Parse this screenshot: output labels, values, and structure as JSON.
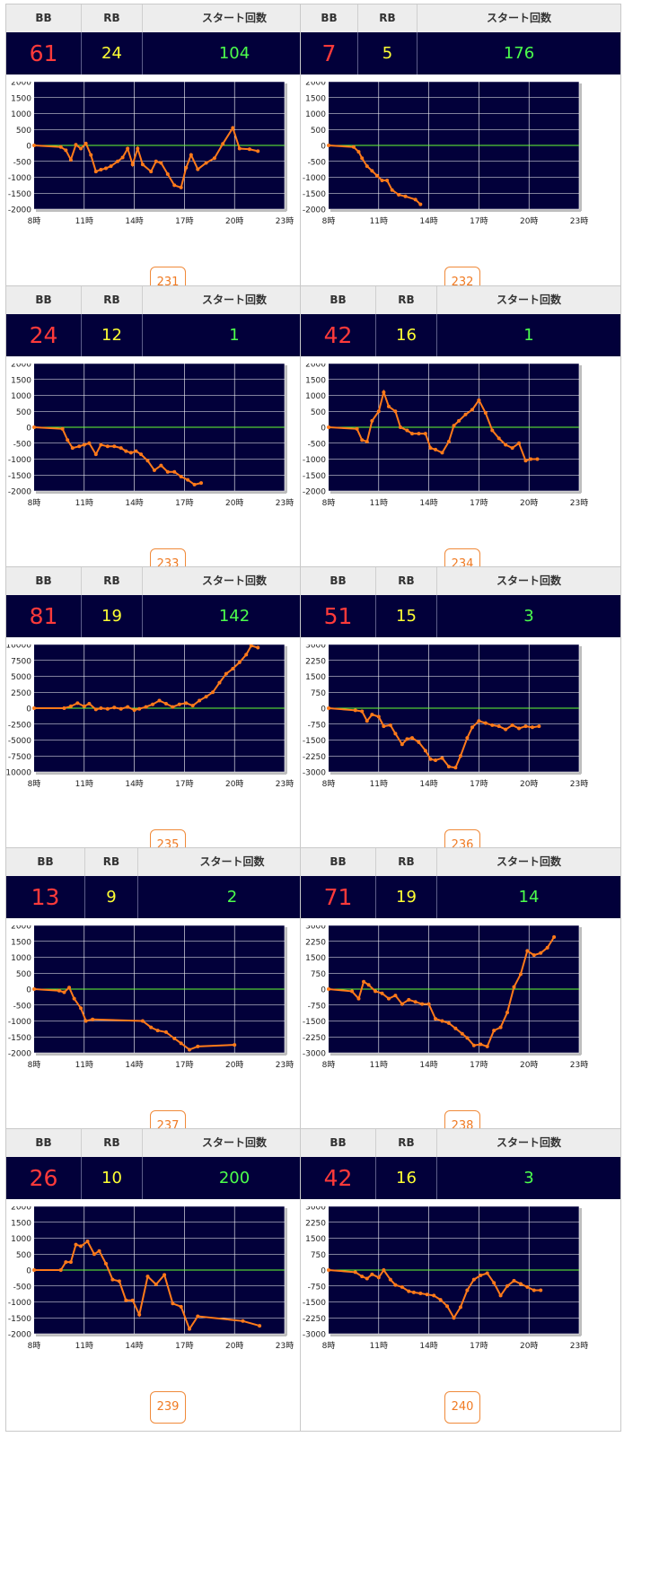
{
  "headers": {
    "bb": "BB",
    "rb": "RB",
    "start": "スタート回数"
  },
  "colors": {
    "bb": "#ff3a3a",
    "rb": "#ffff33",
    "start": "#4cff4c",
    "plot_bg": "#02003a",
    "zero_line": "#66ff33",
    "series": "#ff7a1a"
  },
  "machines": [
    {
      "bb": "61",
      "rb": "24",
      "start": "104",
      "id": "231"
    },
    {
      "bb": "7",
      "rb": "5",
      "start": "176",
      "id": "232"
    },
    {
      "bb": "24",
      "rb": "12",
      "start": "1",
      "id": "233"
    },
    {
      "bb": "42",
      "rb": "16",
      "start": "1",
      "id": "234"
    },
    {
      "bb": "81",
      "rb": "19",
      "start": "142",
      "id": "235"
    },
    {
      "bb": "51",
      "rb": "15",
      "start": "3",
      "id": "236"
    },
    {
      "bb": "13",
      "rb": "9",
      "start": "2",
      "id": "237"
    },
    {
      "bb": "71",
      "rb": "19",
      "start": "14",
      "id": "238"
    },
    {
      "bb": "26",
      "rb": "10",
      "start": "200",
      "id": "239"
    },
    {
      "bb": "42",
      "rb": "16",
      "start": "3",
      "id": "240"
    }
  ],
  "chart_data": [
    {
      "type": "line",
      "x_ticks": [
        "8時",
        "11時",
        "14時",
        "17時",
        "20時",
        "23時"
      ],
      "y_ticks": [
        2000,
        1500,
        1000,
        500,
        0,
        -500,
        -1000,
        -1500,
        -2000
      ],
      "ylim": [
        -2000,
        2000
      ],
      "xlim": [
        8,
        23
      ],
      "series": [
        {
          "x": [
            8,
            9.6,
            9.9,
            10.2,
            10.5,
            10.8,
            11.1,
            11.4,
            11.7,
            12,
            12.3,
            12.6,
            13,
            13.3,
            13.6,
            13.9,
            14.2,
            14.5,
            15,
            15.3,
            15.6,
            16,
            16.4,
            16.8,
            17.1,
            17.4,
            17.8,
            18.3,
            18.8,
            19.3,
            19.9,
            20.3,
            20.9,
            21.4
          ],
          "y": [
            0,
            -50,
            -150,
            -450,
            20,
            -100,
            60,
            -300,
            -820,
            -760,
            -720,
            -650,
            -500,
            -380,
            -100,
            -600,
            -100,
            -600,
            -820,
            -500,
            -550,
            -900,
            -1250,
            -1320,
            -700,
            -300,
            -750,
            -550,
            -400,
            50,
            550,
            -100,
            -120,
            -180
          ]
        }
      ]
    },
    {
      "type": "line",
      "x_ticks": [
        "8時",
        "11時",
        "14時",
        "17時",
        "20時",
        "23時"
      ],
      "y_ticks": [
        2000,
        1500,
        1000,
        500,
        0,
        -500,
        -1000,
        -1500,
        -2000
      ],
      "ylim": [
        -2000,
        2000
      ],
      "xlim": [
        8,
        23
      ],
      "series": [
        {
          "x": [
            8,
            9.5,
            9.8,
            10,
            10.3,
            10.6,
            10.9,
            11.2,
            11.5,
            11.8,
            12.2,
            12.6,
            13.2,
            13.5
          ],
          "y": [
            0,
            -50,
            -200,
            -400,
            -650,
            -800,
            -950,
            -1100,
            -1100,
            -1400,
            -1550,
            -1600,
            -1700,
            -1850
          ]
        }
      ]
    },
    {
      "type": "line",
      "x_ticks": [
        "8時",
        "11時",
        "14時",
        "17時",
        "20時",
        "23時"
      ],
      "y_ticks": [
        2000,
        1500,
        1000,
        500,
        0,
        -500,
        -1000,
        -1500,
        -2000
      ],
      "ylim": [
        -2000,
        2000
      ],
      "xlim": [
        8,
        23
      ],
      "series": [
        {
          "x": [
            8,
            9.7,
            10,
            10.3,
            10.7,
            11,
            11.3,
            11.7,
            12,
            12.4,
            12.8,
            13.2,
            13.5,
            13.8,
            14.1,
            14.4,
            14.8,
            15.2,
            15.6,
            16,
            16.4,
            16.8,
            17.2,
            17.6,
            18
          ],
          "y": [
            0,
            -50,
            -400,
            -650,
            -600,
            -550,
            -500,
            -850,
            -550,
            -600,
            -600,
            -650,
            -750,
            -800,
            -750,
            -850,
            -1050,
            -1350,
            -1200,
            -1400,
            -1400,
            -1550,
            -1650,
            -1800,
            -1750
          ]
        }
      ]
    },
    {
      "type": "line",
      "x_ticks": [
        "8時",
        "11時",
        "14時",
        "17時",
        "20時",
        "23時"
      ],
      "y_ticks": [
        2000,
        1500,
        1000,
        500,
        0,
        -500,
        -1000,
        -1500,
        -2000
      ],
      "ylim": [
        -2000,
        2000
      ],
      "xlim": [
        8,
        23
      ],
      "series": [
        {
          "x": [
            8,
            9.7,
            10,
            10.3,
            10.6,
            11,
            11.3,
            11.6,
            12,
            12.3,
            12.7,
            13,
            13.4,
            13.8,
            14.1,
            14.4,
            14.8,
            15.2,
            15.5,
            15.8,
            16.2,
            16.6,
            17,
            17.4,
            17.8,
            18.2,
            18.6,
            19,
            19.4,
            19.8,
            20.1,
            20.5
          ],
          "y": [
            0,
            -50,
            -400,
            -450,
            200,
            500,
            1100,
            650,
            500,
            0,
            -100,
            -200,
            -200,
            -200,
            -650,
            -700,
            -800,
            -450,
            50,
            200,
            400,
            550,
            850,
            450,
            -100,
            -350,
            -550,
            -650,
            -500,
            -1050,
            -1000,
            -1000
          ]
        }
      ]
    },
    {
      "type": "line",
      "x_ticks": [
        "8時",
        "11時",
        "14時",
        "17時",
        "20時",
        "23時"
      ],
      "y_ticks": [
        10000,
        7500,
        5000,
        2500,
        0,
        -2500,
        -5000,
        -7500,
        -10000
      ],
      "ylim": [
        -10000,
        10000
      ],
      "xlim": [
        8,
        23
      ],
      "series": [
        {
          "x": [
            8,
            9.8,
            10.2,
            10.6,
            11,
            11.3,
            11.7,
            12,
            12.4,
            12.8,
            13.2,
            13.6,
            14,
            14.3,
            14.7,
            15.1,
            15.5,
            15.9,
            16.3,
            16.7,
            17.1,
            17.5,
            17.9,
            18.3,
            18.7,
            19.1,
            19.5,
            19.9,
            20.3,
            20.7,
            21,
            21.4
          ],
          "y": [
            0,
            0,
            300,
            800,
            300,
            700,
            -200,
            0,
            -100,
            100,
            -100,
            200,
            -300,
            -100,
            200,
            600,
            1200,
            700,
            200,
            600,
            800,
            400,
            1200,
            1800,
            2500,
            4000,
            5400,
            6200,
            7200,
            8400,
            9800,
            9500
          ]
        }
      ]
    },
    {
      "type": "line",
      "x_ticks": [
        "8時",
        "11時",
        "14時",
        "17時",
        "20時",
        "23時"
      ],
      "y_ticks": [
        3000,
        2250,
        1500,
        750,
        0,
        -750,
        -1500,
        -2250,
        -3000
      ],
      "ylim": [
        -3000,
        3000
      ],
      "xlim": [
        8,
        23
      ],
      "series": [
        {
          "x": [
            8,
            9.6,
            10,
            10.3,
            10.6,
            11,
            11.3,
            11.7,
            12,
            12.4,
            12.7,
            13,
            13.4,
            13.8,
            14.1,
            14.4,
            14.8,
            15.2,
            15.6,
            15.9,
            16.3,
            16.6,
            17,
            17.4,
            17.8,
            18.2,
            18.6,
            19,
            19.4,
            19.8,
            20.2,
            20.6
          ],
          "y": [
            0,
            -100,
            -150,
            -600,
            -300,
            -400,
            -850,
            -800,
            -1200,
            -1700,
            -1450,
            -1400,
            -1600,
            -2000,
            -2400,
            -2450,
            -2350,
            -2750,
            -2800,
            -2250,
            -1400,
            -900,
            -600,
            -700,
            -800,
            -850,
            -1000,
            -800,
            -950,
            -850,
            -900,
            -850
          ]
        }
      ]
    },
    {
      "type": "line",
      "x_ticks": [
        "8時",
        "11時",
        "14時",
        "17時",
        "20時",
        "23時"
      ],
      "y_ticks": [
        2000,
        1500,
        1000,
        500,
        0,
        -500,
        -1000,
        -1500,
        -2000
      ],
      "ylim": [
        -2000,
        2000
      ],
      "xlim": [
        8,
        23
      ],
      "series": [
        {
          "x": [
            8,
            9.5,
            9.8,
            10.1,
            10.4,
            10.8,
            11.1,
            11.5,
            14.5,
            15,
            15.4,
            15.9,
            16.4,
            16.8,
            17.3,
            17.8,
            20
          ],
          "y": [
            0,
            -50,
            -100,
            50,
            -300,
            -600,
            -1000,
            -950,
            -1000,
            -1200,
            -1300,
            -1350,
            -1550,
            -1700,
            -1900,
            -1800,
            -1750
          ]
        }
      ]
    },
    {
      "type": "line",
      "x_ticks": [
        "8時",
        "11時",
        "14時",
        "17時",
        "20時",
        "23時"
      ],
      "y_ticks": [
        3000,
        2250,
        1500,
        750,
        0,
        -750,
        -1500,
        -2250,
        -3000
      ],
      "ylim": [
        -3000,
        3000
      ],
      "xlim": [
        8,
        23
      ],
      "series": [
        {
          "x": [
            8,
            9.4,
            9.8,
            10.1,
            10.4,
            10.8,
            11.2,
            11.6,
            12,
            12.4,
            12.8,
            13.2,
            13.6,
            14,
            14.4,
            14.8,
            15.2,
            15.6,
            16,
            16.3,
            16.7,
            17.1,
            17.5,
            17.9,
            18.3,
            18.7,
            19.1,
            19.5,
            19.9,
            20.3,
            20.7,
            21.1,
            21.5
          ],
          "y": [
            0,
            -100,
            -450,
            350,
            200,
            -100,
            -200,
            -450,
            -300,
            -700,
            -500,
            -600,
            -700,
            -700,
            -1400,
            -1500,
            -1600,
            -1850,
            -2100,
            -2300,
            -2650,
            -2600,
            -2700,
            -1950,
            -1800,
            -1100,
            100,
            700,
            1800,
            1600,
            1700,
            1950,
            2450
          ]
        }
      ]
    },
    {
      "type": "line",
      "x_ticks": [
        "8時",
        "11時",
        "14時",
        "17時",
        "20時",
        "23時"
      ],
      "y_ticks": [
        2000,
        1500,
        1000,
        500,
        0,
        -500,
        -1000,
        -1500,
        -2000
      ],
      "ylim": [
        -2000,
        2000
      ],
      "xlim": [
        8,
        23
      ],
      "series": [
        {
          "x": [
            8,
            9.6,
            9.9,
            10.2,
            10.5,
            10.8,
            11.2,
            11.6,
            11.9,
            12.3,
            12.7,
            13.1,
            13.5,
            13.9,
            14.3,
            14.8,
            15.3,
            15.8,
            16.3,
            16.8,
            17.3,
            17.8,
            20.5,
            21.5
          ],
          "y": [
            0,
            0,
            250,
            250,
            800,
            750,
            900,
            500,
            600,
            200,
            -300,
            -350,
            -950,
            -950,
            -1400,
            -200,
            -450,
            -150,
            -1050,
            -1150,
            -1850,
            -1450,
            -1600,
            -1750
          ]
        }
      ]
    },
    {
      "type": "line",
      "x_ticks": [
        "8時",
        "11時",
        "14時",
        "17時",
        "20時",
        "23時"
      ],
      "y_ticks": [
        3000,
        2250,
        1500,
        750,
        0,
        -750,
        -1500,
        -2250,
        -3000
      ],
      "ylim": [
        -3000,
        3000
      ],
      "xlim": [
        8,
        23
      ],
      "series": [
        {
          "x": [
            8,
            9.6,
            10,
            10.3,
            10.6,
            11,
            11.3,
            11.7,
            12,
            12.4,
            12.8,
            13.1,
            13.5,
            13.9,
            14.3,
            14.7,
            15.1,
            15.5,
            15.9,
            16.3,
            16.7,
            17.1,
            17.5,
            17.9,
            18.3,
            18.7,
            19.1,
            19.5,
            19.9,
            20.3,
            20.7
          ],
          "y": [
            0,
            -100,
            -300,
            -400,
            -200,
            -350,
            0,
            -450,
            -700,
            -800,
            -1000,
            -1050,
            -1100,
            -1150,
            -1200,
            -1400,
            -1700,
            -2250,
            -1750,
            -950,
            -450,
            -250,
            -150,
            -600,
            -1200,
            -750,
            -500,
            -650,
            -800,
            -950,
            -950
          ]
        }
      ]
    }
  ]
}
